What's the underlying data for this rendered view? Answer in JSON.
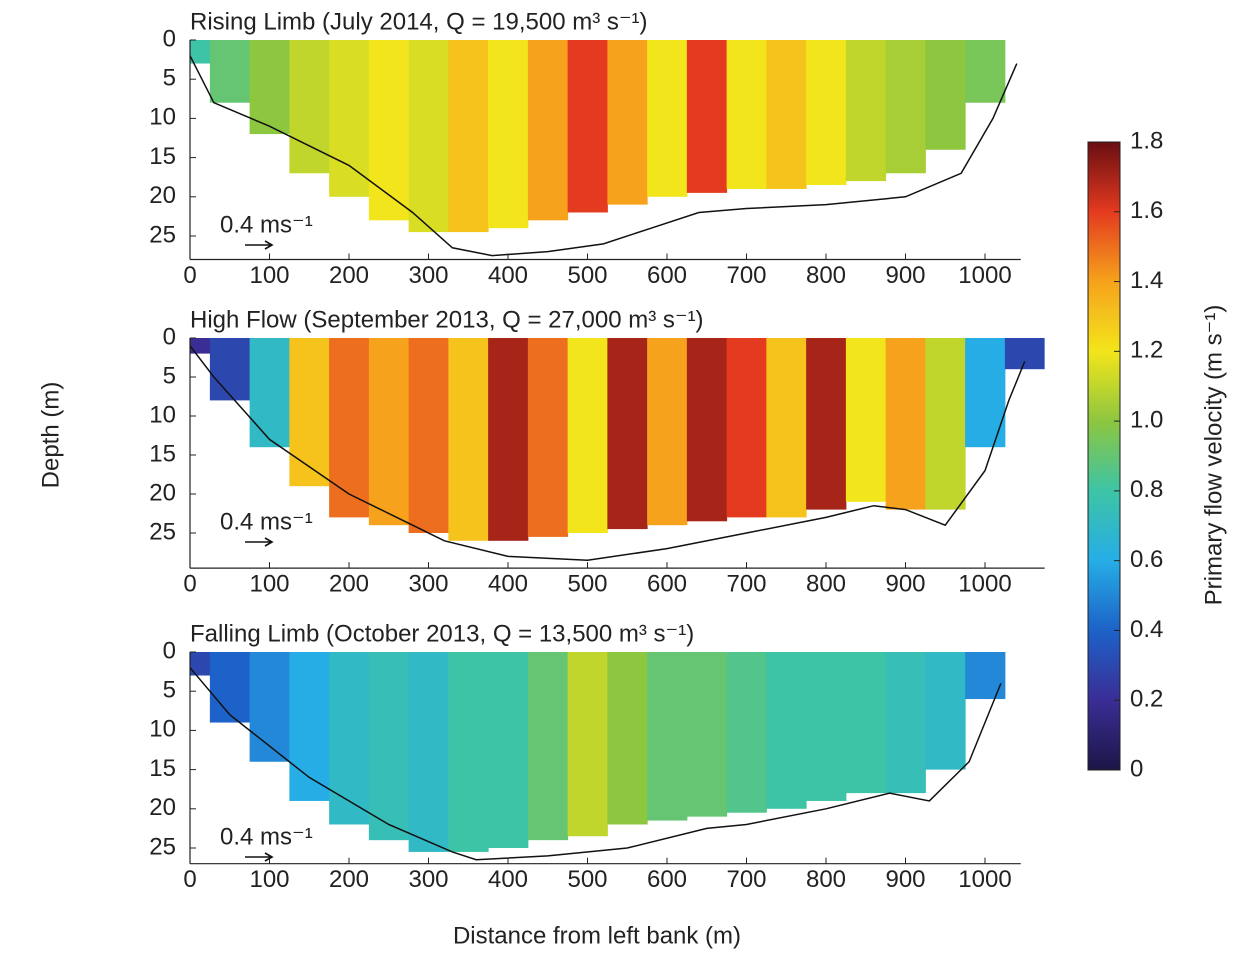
{
  "figure": {
    "ylabel": "Depth (m)",
    "xlabel": "Distance from left bank (m)"
  },
  "chart_data": [
    {
      "type": "heatmap",
      "title": "Rising Limb (July 2014, Q = 19,500 m³ s⁻¹)",
      "scale_label": "0.4 ms⁻¹",
      "x": [
        0,
        50,
        100,
        150,
        200,
        250,
        300,
        350,
        400,
        450,
        500,
        550,
        600,
        650,
        700,
        750,
        800,
        850,
        900,
        950,
        1000
      ],
      "values": [
        0.8,
        0.9,
        1.0,
        1.1,
        1.15,
        1.2,
        1.15,
        1.3,
        1.2,
        1.4,
        1.6,
        1.4,
        1.2,
        1.6,
        1.2,
        1.3,
        1.2,
        1.1,
        1.05,
        1.0,
        0.95
      ],
      "depths": [
        3,
        8,
        12,
        17,
        20,
        23,
        24.5,
        24.5,
        24,
        23,
        22,
        21,
        20,
        19.5,
        19,
        19,
        18.5,
        18,
        17,
        14,
        8
      ],
      "bed_x": [
        0,
        30,
        100,
        200,
        280,
        330,
        380,
        450,
        520,
        580,
        640,
        700,
        800,
        900,
        970,
        1010,
        1040
      ],
      "bed_depth": [
        2,
        8,
        11,
        16,
        22,
        26.5,
        27.5,
        27,
        26,
        24,
        22,
        21.5,
        21,
        20,
        17,
        10,
        3
      ],
      "xlim": [
        0,
        1045
      ],
      "ylim": [
        0,
        28
      ],
      "xticks": [
        0,
        100,
        200,
        300,
        400,
        500,
        600,
        700,
        800,
        900,
        1000
      ],
      "yticks": [
        0,
        5,
        10,
        15,
        20,
        25
      ]
    },
    {
      "type": "heatmap",
      "title": "High Flow (September 2013, Q = 27,000 m³ s⁻¹)",
      "scale_label": "0.4 ms⁻¹",
      "x": [
        0,
        50,
        100,
        150,
        200,
        250,
        300,
        350,
        400,
        450,
        500,
        550,
        600,
        650,
        700,
        750,
        800,
        850,
        900,
        950,
        1000,
        1050
      ],
      "values": [
        0.2,
        0.3,
        0.7,
        1.3,
        1.5,
        1.4,
        1.5,
        1.3,
        1.7,
        1.5,
        1.2,
        1.7,
        1.4,
        1.7,
        1.6,
        1.3,
        1.7,
        1.2,
        1.4,
        1.1,
        0.6,
        0.3
      ],
      "depths": [
        2,
        8,
        14,
        19,
        23,
        24,
        25,
        26,
        26,
        25.5,
        25,
        24.5,
        24,
        23.5,
        23,
        23,
        22,
        21,
        22,
        22,
        14,
        4
      ],
      "bed_x": [
        0,
        30,
        100,
        200,
        280,
        320,
        400,
        500,
        600,
        700,
        800,
        860,
        900,
        950,
        1000,
        1030,
        1050
      ],
      "bed_depth": [
        1,
        5,
        13,
        20,
        24,
        26,
        28,
        28.5,
        27,
        25,
        23,
        21.5,
        22,
        24,
        17,
        8,
        3
      ],
      "xlim": [
        0,
        1075
      ],
      "ylim": [
        0,
        29.5
      ],
      "xticks": [
        0,
        100,
        200,
        300,
        400,
        500,
        600,
        700,
        800,
        900,
        1000
      ],
      "yticks": [
        0,
        5,
        10,
        15,
        20,
        25
      ]
    },
    {
      "type": "heatmap",
      "title": "Falling Limb (October 2013, Q = 13,500 m³ s⁻¹)",
      "scale_label": "0.4 ms⁻¹",
      "x": [
        0,
        50,
        100,
        150,
        200,
        250,
        300,
        350,
        400,
        450,
        500,
        550,
        600,
        650,
        700,
        750,
        800,
        850,
        900,
        950,
        1000
      ],
      "values": [
        0.3,
        0.4,
        0.5,
        0.6,
        0.7,
        0.75,
        0.7,
        0.8,
        0.8,
        0.9,
        1.1,
        1.0,
        0.9,
        0.9,
        0.85,
        0.8,
        0.8,
        0.8,
        0.75,
        0.7,
        0.5
      ],
      "depths": [
        3,
        9,
        14,
        19,
        22,
        24,
        25.5,
        25.5,
        25,
        24,
        23.5,
        22,
        21.5,
        21,
        20.5,
        20,
        19,
        18,
        18,
        15,
        6
      ],
      "bed_x": [
        0,
        50,
        150,
        250,
        330,
        360,
        450,
        550,
        650,
        700,
        800,
        880,
        930,
        980,
        1020
      ],
      "bed_depth": [
        2,
        8,
        16,
        22,
        25.5,
        26.5,
        26,
        25,
        22.5,
        22,
        20,
        18,
        19,
        14,
        4
      ],
      "xlim": [
        0,
        1045
      ],
      "ylim": [
        0,
        27
      ],
      "xticks": [
        0,
        100,
        200,
        300,
        400,
        500,
        600,
        700,
        800,
        900,
        1000
      ],
      "yticks": [
        0,
        5,
        10,
        15,
        20,
        25
      ]
    }
  ],
  "colorbar": {
    "label": "Primary flow velocity (m s⁻¹)",
    "lim": [
      0,
      1.8
    ],
    "ticks": [
      0,
      0.2,
      0.4,
      0.6,
      0.8,
      {
        "value": 1,
        "label": "1.0"
      },
      1.2,
      1.4,
      1.6,
      1.8
    ],
    "colors": [
      "#1b1646",
      "#3a2d96",
      "#1d62c8",
      "#26ade6",
      "#3dc4a6",
      "#8dc63f",
      "#f3e51b",
      "#f6a21c",
      "#e43a1f",
      "#6a0e12"
    ]
  }
}
